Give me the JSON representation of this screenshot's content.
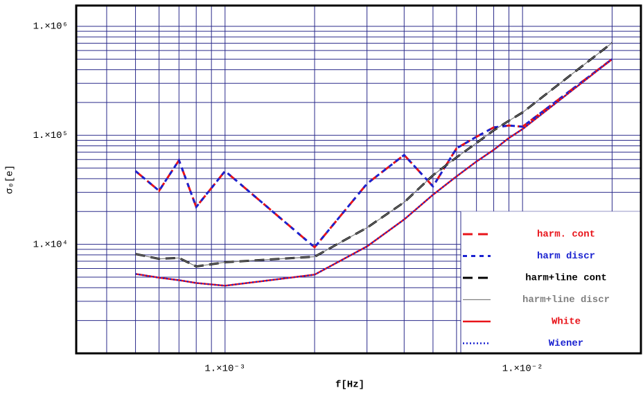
{
  "chart_data": {
    "type": "line",
    "xlabel": "f[Hz]",
    "ylabel": "σ₀[e]",
    "xscale": "log",
    "yscale": "log",
    "xlim": [
      0.000316,
      0.025
    ],
    "ylim": [
      1000,
      1550000
    ],
    "xticks": [
      {
        "value": 0.001,
        "label": "1.×10⁻³"
      },
      {
        "value": 0.01,
        "label": "1.×10⁻²"
      }
    ],
    "yticks": [
      {
        "value": 10000,
        "label": "1.×10⁴"
      },
      {
        "value": 100000,
        "label": "1.×10⁵"
      },
      {
        "value": 1000000,
        "label": "1.×10⁶"
      }
    ],
    "x_minor_grid": [
      0.0004,
      0.0005,
      0.0006,
      0.0007,
      0.0008,
      0.0009,
      0.002,
      0.003,
      0.004,
      0.005,
      0.006,
      0.007,
      0.008,
      0.009,
      0.02
    ],
    "y_minor_grid": [
      2000,
      3000,
      4000,
      5000,
      6000,
      7000,
      8000,
      9000,
      20000,
      30000,
      40000,
      50000,
      60000,
      70000,
      80000,
      90000,
      200000,
      300000,
      400000,
      500000,
      600000,
      700000,
      800000,
      900000
    ],
    "grid": true,
    "grid_color": "#2a2a8a",
    "legend": "lower right",
    "x": [
      0.0005,
      0.0006,
      0.0007,
      0.0008,
      0.001,
      0.002,
      0.003,
      0.004,
      0.005,
      0.006,
      0.007,
      0.008,
      0.009,
      0.01,
      0.02
    ],
    "series": [
      {
        "name": "harm. cont",
        "color": "#e8141a",
        "style": "dashed",
        "values": [
          47000,
          31000,
          59000,
          22000,
          47000,
          9400,
          36000,
          66000,
          34000,
          76000,
          97000,
          118000,
          123000,
          120000,
          500000
        ]
      },
      {
        "name": "harm discr",
        "color": "#1a22d0",
        "style": "dashed",
        "values": [
          47000,
          31000,
          59000,
          22000,
          47000,
          9400,
          36000,
          66000,
          34000,
          76000,
          97000,
          118000,
          123000,
          120000,
          500000
        ]
      },
      {
        "name": "harm+line cont",
        "color": "#000000",
        "style": "dashed",
        "values": [
          8150,
          7360,
          7500,
          6270,
          6850,
          7700,
          14200,
          24300,
          43000,
          62700,
          85000,
          111000,
          136000,
          162000,
          705000
        ]
      },
      {
        "name": "harm+line discr",
        "color": "#808080",
        "style": "solid",
        "values": [
          8150,
          7360,
          7500,
          6270,
          6850,
          7700,
          14200,
          24300,
          43000,
          62700,
          85000,
          111000,
          136000,
          162000,
          705000
        ]
      },
      {
        "name": "White",
        "color": "#e8141a",
        "style": "solid",
        "values": [
          5350,
          4950,
          4690,
          4420,
          4170,
          5270,
          9570,
          16900,
          28500,
          42000,
          57500,
          73500,
          94500,
          114000,
          500000
        ]
      },
      {
        "name": "Wiener",
        "color": "#1a22d0",
        "style": "dotted",
        "values": [
          5350,
          4950,
          4690,
          4420,
          4170,
          5270,
          9570,
          16900,
          28500,
          42000,
          57500,
          73500,
          94500,
          114000,
          500000
        ]
      }
    ]
  }
}
